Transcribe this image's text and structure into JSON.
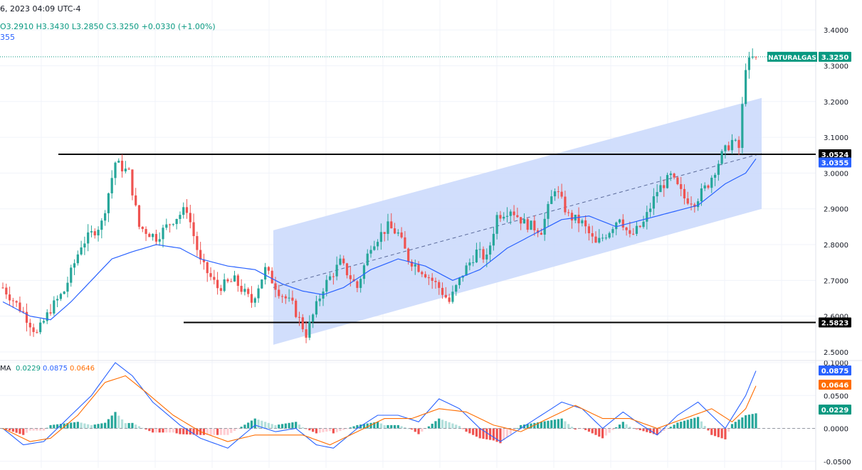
{
  "header": {
    "datetime": "6, 2023 04:09 UTC-4",
    "ohlc": "O3.2910  H3.3430  L3.2850  C3.3250  +0.0330 (+1.00%)",
    "ma_value": "355"
  },
  "colors": {
    "up": "#26a69a",
    "down": "#ef5350",
    "ma_line": "#2962ff",
    "channel_fill": "#c9d8fb",
    "macd_line": "#2962ff",
    "signal_line": "#ff6d00",
    "hist_up_strong": "#26a69a",
    "hist_up_weak": "#b2dfdb",
    "hist_down_strong": "#ef5350",
    "hist_down_weak": "#ffcdd2",
    "price_tag": "#089981",
    "level_tag": "#000000",
    "ma_tag": "#2962ff"
  },
  "chart_data": [
    {
      "type": "candlestick",
      "symbol": "NATURALGAS",
      "last_price": "3.3250",
      "ylim": [
        2.48,
        3.44
      ],
      "y_ticks": [
        "3.4000",
        "3.3000",
        "3.2000",
        "3.1000",
        "3.0000",
        "2.9000",
        "2.8000",
        "2.7000",
        "2.6000",
        "2.5000"
      ],
      "y_tick_values": [
        3.4,
        3.3,
        3.2,
        3.1,
        3.0,
        2.9,
        2.8,
        2.7,
        2.6,
        2.5
      ],
      "grid": true,
      "resistance": {
        "value": 3.0524,
        "label": "3.0524"
      },
      "support": {
        "value": 2.5823,
        "label": "2.5823"
      },
      "ma_last": {
        "value": 3.0355,
        "label": "3.0355"
      },
      "channel": {
        "lower_start": 2.52,
        "upper_start": 2.84,
        "lower_end": 2.9,
        "upper_end": 3.21
      },
      "candle_count": 168,
      "waypoints": [
        [
          0,
          2.68
        ],
        [
          6,
          2.61
        ],
        [
          10,
          2.55
        ],
        [
          14,
          2.62
        ],
        [
          18,
          2.67
        ],
        [
          23,
          2.8
        ],
        [
          29,
          2.86
        ],
        [
          33,
          3.03
        ],
        [
          37,
          3.0
        ],
        [
          40,
          2.85
        ],
        [
          45,
          2.82
        ],
        [
          50,
          2.87
        ],
        [
          54,
          2.9
        ],
        [
          58,
          2.75
        ],
        [
          63,
          2.68
        ],
        [
          68,
          2.7
        ],
        [
          73,
          2.64
        ],
        [
          77,
          2.73
        ],
        [
          81,
          2.67
        ],
        [
          85,
          2.63
        ],
        [
          89,
          2.55
        ],
        [
          94,
          2.68
        ],
        [
          99,
          2.75
        ],
        [
          104,
          2.68
        ],
        [
          108,
          2.8
        ],
        [
          113,
          2.85
        ],
        [
          116,
          2.83
        ],
        [
          119,
          2.76
        ],
        [
          124,
          2.72
        ],
        [
          128,
          2.68
        ],
        [
          131,
          2.64
        ],
        [
          135,
          2.72
        ],
        [
          139,
          2.78
        ],
        [
          142,
          2.76
        ],
        [
          145,
          2.88
        ],
        [
          149,
          2.9
        ],
        [
          153,
          2.86
        ],
        [
          158,
          2.84
        ],
        [
          162,
          2.96
        ],
        [
          166,
          2.88
        ],
        [
          170,
          2.86
        ],
        [
          174,
          2.8
        ],
        [
          178,
          2.84
        ],
        [
          181,
          2.88
        ],
        [
          184,
          2.82
        ],
        [
          188,
          2.86
        ],
        [
          192,
          2.95
        ],
        [
          196,
          2.99
        ],
        [
          200,
          2.93
        ],
        [
          203,
          2.92
        ],
        [
          207,
          2.97
        ],
        [
          211,
          3.05
        ],
        [
          214,
          3.09
        ],
        [
          216,
          3.07
        ],
        [
          218,
          3.3
        ],
        [
          221,
          3.33
        ]
      ],
      "ma_waypoints": [
        [
          0,
          2.64
        ],
        [
          8,
          2.6
        ],
        [
          14,
          2.59
        ],
        [
          20,
          2.64
        ],
        [
          26,
          2.7
        ],
        [
          32,
          2.76
        ],
        [
          38,
          2.78
        ],
        [
          45,
          2.8
        ],
        [
          52,
          2.79
        ],
        [
          58,
          2.76
        ],
        [
          66,
          2.74
        ],
        [
          74,
          2.73
        ],
        [
          82,
          2.69
        ],
        [
          88,
          2.67
        ],
        [
          94,
          2.66
        ],
        [
          100,
          2.68
        ],
        [
          108,
          2.73
        ],
        [
          116,
          2.76
        ],
        [
          124,
          2.74
        ],
        [
          132,
          2.7
        ],
        [
          140,
          2.73
        ],
        [
          148,
          2.79
        ],
        [
          156,
          2.83
        ],
        [
          164,
          2.87
        ],
        [
          172,
          2.88
        ],
        [
          180,
          2.85
        ],
        [
          188,
          2.87
        ],
        [
          196,
          2.89
        ],
        [
          204,
          2.91
        ],
        [
          212,
          2.97
        ],
        [
          218,
          3.0
        ],
        [
          221,
          3.04
        ]
      ],
      "x_ticks": []
    },
    {
      "type": "macd",
      "legend_prefix": "MA",
      "legend_values": [
        "0.0229",
        "0.0875",
        "0.0646"
      ],
      "ylim": [
        -0.06,
        0.1
      ],
      "y_ticks": [
        "0.1000",
        "0.0500",
        "0.0000",
        "-0.0500"
      ],
      "y_tick_values": [
        0.1,
        0.05,
        0.0,
        -0.05
      ],
      "last": {
        "hist": "0.0229",
        "macd": "0.0875",
        "signal": "0.0646"
      },
      "macd_waypoints": [
        [
          0,
          0.0
        ],
        [
          6,
          -0.025
        ],
        [
          12,
          -0.02
        ],
        [
          18,
          0.01
        ],
        [
          26,
          0.05
        ],
        [
          33,
          0.1
        ],
        [
          38,
          0.08
        ],
        [
          44,
          0.04
        ],
        [
          52,
          0.005
        ],
        [
          58,
          -0.015
        ],
        [
          66,
          -0.03
        ],
        [
          74,
          0.005
        ],
        [
          80,
          -0.005
        ],
        [
          86,
          0.0
        ],
        [
          92,
          -0.025
        ],
        [
          97,
          -0.03
        ],
        [
          104,
          0.0
        ],
        [
          110,
          0.02
        ],
        [
          116,
          0.02
        ],
        [
          122,
          0.01
        ],
        [
          128,
          0.045
        ],
        [
          134,
          0.03
        ],
        [
          140,
          0.0
        ],
        [
          146,
          -0.02
        ],
        [
          152,
          0.0
        ],
        [
          158,
          0.02
        ],
        [
          164,
          0.04
        ],
        [
          170,
          0.03
        ],
        [
          176,
          0.0
        ],
        [
          182,
          0.025
        ],
        [
          186,
          0.01
        ],
        [
          192,
          -0.01
        ],
        [
          198,
          0.02
        ],
        [
          204,
          0.04
        ],
        [
          212,
          0.0
        ],
        [
          218,
          0.05
        ],
        [
          221,
          0.0875
        ]
      ],
      "signal_waypoints": [
        [
          0,
          0.0
        ],
        [
          8,
          -0.02
        ],
        [
          14,
          -0.015
        ],
        [
          22,
          0.02
        ],
        [
          30,
          0.07
        ],
        [
          36,
          0.08
        ],
        [
          42,
          0.055
        ],
        [
          50,
          0.02
        ],
        [
          58,
          -0.005
        ],
        [
          66,
          -0.02
        ],
        [
          74,
          -0.01
        ],
        [
          80,
          -0.01
        ],
        [
          88,
          -0.01
        ],
        [
          96,
          -0.025
        ],
        [
          104,
          -0.005
        ],
        [
          112,
          0.015
        ],
        [
          120,
          0.015
        ],
        [
          128,
          0.03
        ],
        [
          136,
          0.025
        ],
        [
          144,
          0.005
        ],
        [
          152,
          -0.005
        ],
        [
          160,
          0.015
        ],
        [
          168,
          0.035
        ],
        [
          176,
          0.015
        ],
        [
          184,
          0.015
        ],
        [
          192,
          0.0
        ],
        [
          200,
          0.015
        ],
        [
          208,
          0.03
        ],
        [
          214,
          0.01
        ],
        [
          218,
          0.03
        ],
        [
          221,
          0.0646
        ]
      ]
    }
  ]
}
